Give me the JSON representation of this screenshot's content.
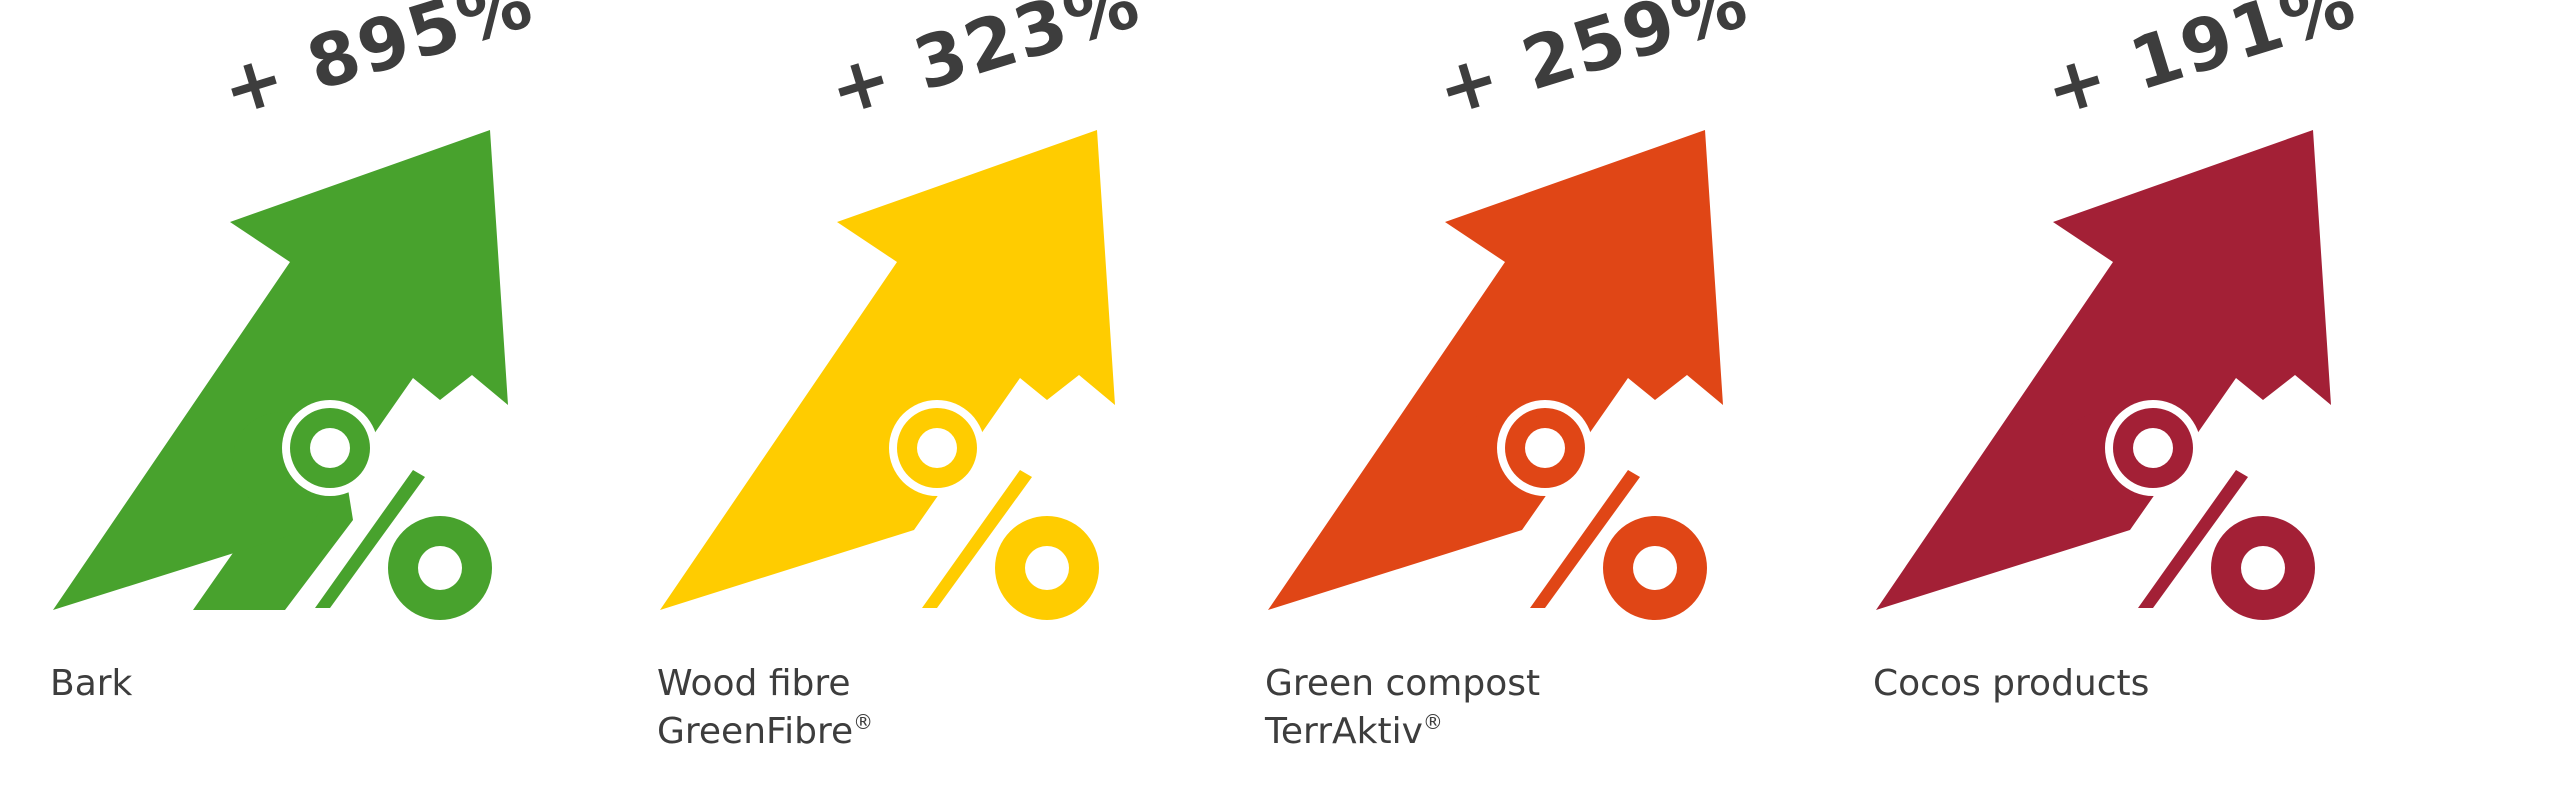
{
  "items": [
    {
      "percent": "+ 895%",
      "label_line1": "Bark",
      "label_line2": "",
      "reg": "",
      "color": "#48A22D"
    },
    {
      "percent": "+ 323%",
      "label_line1": "Wood fibre",
      "label_line2": "GreenFibre",
      "reg": "®",
      "color": "#FFCC00"
    },
    {
      "percent": "+ 259%",
      "label_line1": "Green compost",
      "label_line2": "TerrAktiv",
      "reg": "®",
      "color": "#E04616"
    },
    {
      "percent": "+ 191%",
      "label_line1": "Cocos products",
      "label_line2": "",
      "reg": "",
      "color": "#A32036"
    }
  ],
  "icon": "arrow-up-percent-icon"
}
